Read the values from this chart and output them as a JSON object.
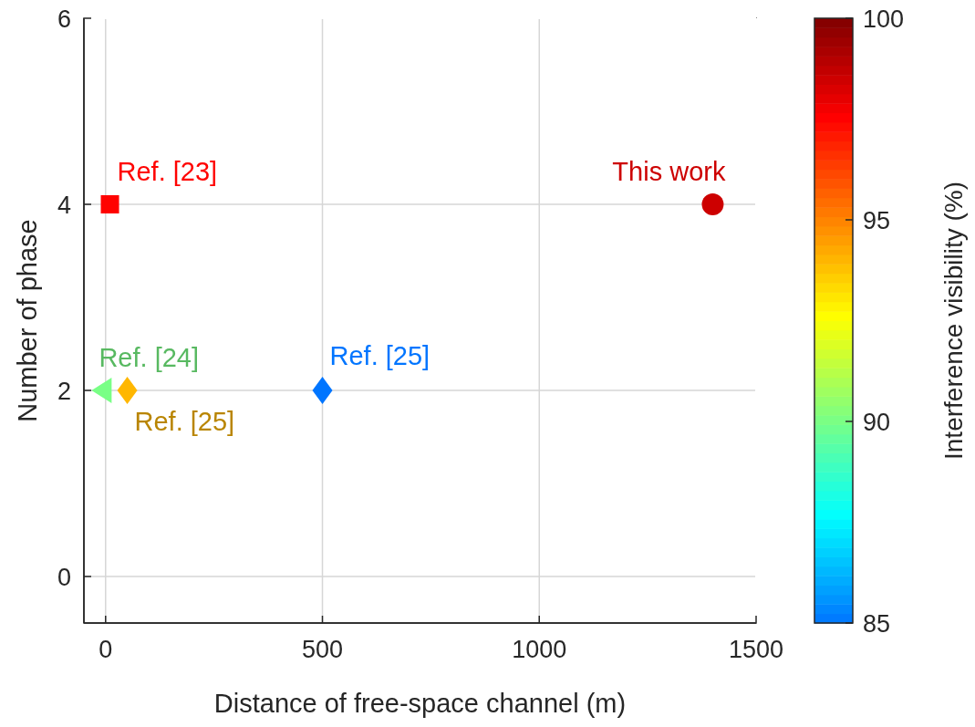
{
  "chart_data": {
    "type": "scatter",
    "xlabel": "Distance of free-space channel (m)",
    "ylabel": "Number of phase",
    "clabel": "Interference visibility (%)",
    "xlim": [
      -50,
      1500
    ],
    "xticks": [
      0,
      500,
      1000,
      1500
    ],
    "ylim": [
      -0.5,
      6
    ],
    "yticks": [
      0,
      2,
      4,
      6
    ],
    "clim": [
      85,
      100
    ],
    "cticks": [
      85,
      90,
      95,
      100
    ],
    "grid": true,
    "series": [
      {
        "x": [
          10
        ],
        "values": [
          4
        ],
        "cvalues": [
          97.5
        ],
        "marker": "square"
      },
      {
        "x": [
          -5
        ],
        "values": [
          2
        ],
        "cvalues": [
          90
        ],
        "marker": "triangle"
      },
      {
        "x": [
          50
        ],
        "values": [
          2
        ],
        "cvalues": [
          94
        ],
        "marker": "diamond"
      },
      {
        "x": [
          500
        ],
        "values": [
          2
        ],
        "cvalues": [
          85
        ],
        "marker": "diamond"
      },
      {
        "x": [
          1400
        ],
        "values": [
          4
        ],
        "cvalues": [
          98.5
        ],
        "marker": "circle"
      }
    ],
    "annotations": [
      {
        "text": "Ref. [23]",
        "x": 10,
        "y": 4
      },
      {
        "text": "Ref. [24]",
        "x": -5,
        "y": 2
      },
      {
        "text": "Ref. [25]",
        "x": 50,
        "y": 2
      },
      {
        "text": "Ref. [25]",
        "x": 500,
        "y": 2
      },
      {
        "text": "This work",
        "x": 1400,
        "y": 4
      }
    ]
  }
}
